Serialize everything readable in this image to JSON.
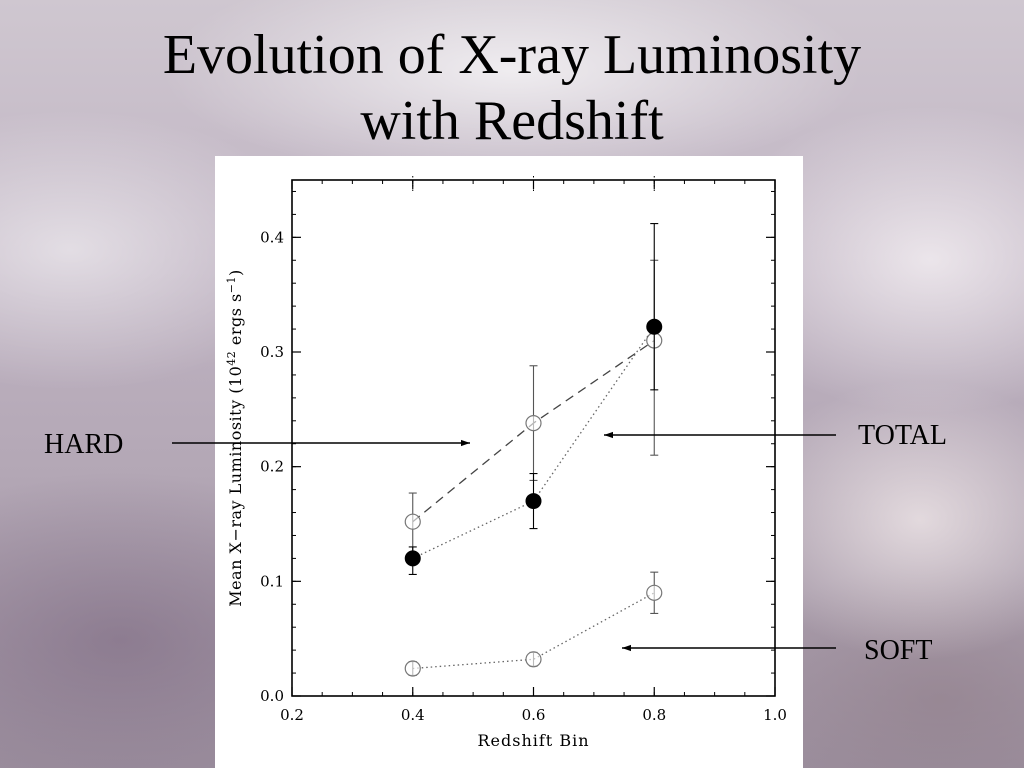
{
  "slide": {
    "title_line1": "Evolution of X-ray Luminosity",
    "title_line2": "with Redshift"
  },
  "callouts": {
    "hard": "HARD",
    "total": "TOTAL",
    "soft": "SOFT"
  },
  "chart_data": {
    "type": "scatter",
    "xlabel": "Redshift Bin",
    "ylabel": "Mean X−ray Luminosity (10^42 ergs s^-1)",
    "ylabel_parts": {
      "pre": "Mean X−ray Luminosity (10",
      "exp1": "42",
      "mid": " ergs s",
      "exp2": "−1",
      "post": ")"
    },
    "xlim": [
      0.2,
      1.0
    ],
    "ylim": [
      0.0,
      0.45
    ],
    "xticks": [
      "0.2",
      "0.4",
      "0.6",
      "0.8",
      "1.0"
    ],
    "yticks": [
      "0.0",
      "0.1",
      "0.2",
      "0.3",
      "0.4"
    ],
    "grid": false,
    "series": [
      {
        "marker": "open-circle",
        "line": "dashed",
        "x": [
          0.4,
          0.6,
          0.8
        ],
        "y": [
          0.152,
          0.238,
          0.31
        ],
        "err_low": [
          0.027,
          0.05,
          0.1
        ],
        "err_high": [
          0.025,
          0.05,
          0.07
        ]
      },
      {
        "marker": "filled-circle",
        "line": "dotted",
        "x": [
          0.4,
          0.6,
          0.8
        ],
        "y": [
          0.12,
          0.17,
          0.322
        ],
        "err_low": [
          0.014,
          0.024,
          0.055
        ],
        "err_high": [
          0.01,
          0.024,
          0.09
        ]
      },
      {
        "marker": "open-circle",
        "line": "dotted",
        "x": [
          0.4,
          0.6,
          0.8
        ],
        "y": [
          0.024,
          0.032,
          0.09
        ],
        "err_low": [
          0.006,
          0.006,
          0.018
        ],
        "err_high": [
          0.006,
          0.006,
          0.018
        ]
      }
    ]
  }
}
